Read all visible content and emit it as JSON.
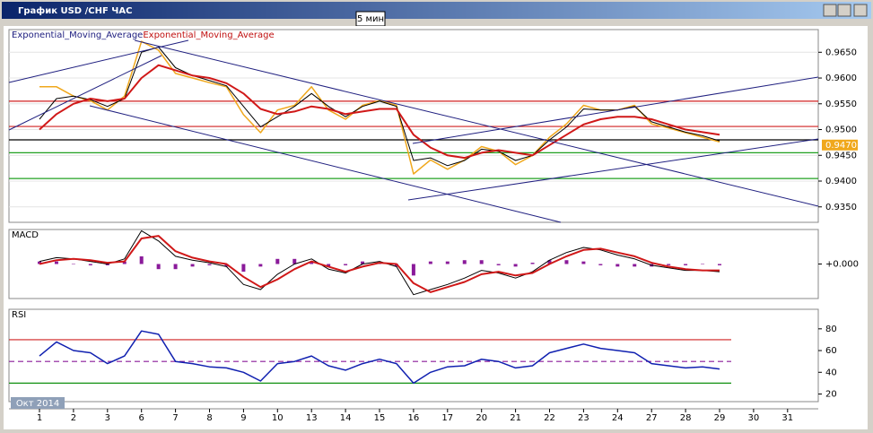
{
  "window": {
    "title": "График USD /CHF  ЧАС",
    "badge": "5 мин"
  },
  "x_axis": {
    "period_label": "Окт 2014"
  },
  "chart_data": [
    {
      "type": "line",
      "categories": [
        "1",
        null,
        "2",
        null,
        "3",
        null,
        "6",
        null,
        "7",
        null,
        "8",
        null,
        "9",
        null,
        "10",
        null,
        "13",
        null,
        "14",
        null,
        "15",
        null,
        "16",
        null,
        "17",
        null,
        "20",
        null,
        "21",
        null,
        "22",
        null,
        "23",
        null,
        "24",
        null,
        "27",
        null,
        "28",
        null,
        "29",
        null,
        "30",
        null,
        "31",
        null
      ],
      "ylim": [
        0.932,
        0.9694
      ],
      "yticks": [
        {
          "value": 0.935,
          "label": "0.9350"
        },
        {
          "value": 0.94,
          "label": "0.9400"
        },
        {
          "value": 0.945,
          "label": "0.9450"
        },
        {
          "value": 0.95,
          "label": "0.9500"
        },
        {
          "value": 0.955,
          "label": "0.9550"
        },
        {
          "value": 0.96,
          "label": "0.9600"
        },
        {
          "value": 0.965,
          "label": "0.9650"
        }
      ],
      "grid": true,
      "series": [
        {
          "color": "#f0a81c",
          "width": 1.5,
          "values": [
            0.9583,
            0.9583,
            0.9565,
            0.9556,
            0.9538,
            0.9565,
            0.9671,
            0.9654,
            0.9609,
            0.96,
            0.9591,
            0.9583,
            0.9529,
            0.9494,
            0.9538,
            0.9547,
            0.9583,
            0.9538,
            0.952,
            0.9547,
            0.9556,
            0.9547,
            0.9414,
            0.9441,
            0.9423,
            0.9441,
            0.9467,
            0.9458,
            0.9432,
            0.945,
            0.9485,
            0.9511,
            0.9547,
            0.9538,
            0.9538,
            0.9547,
            0.9511,
            0.9503,
            0.9494,
            0.9485,
            0.9476,
            null,
            null,
            null,
            null,
            null
          ]
        },
        {
          "name": "Exponential_Moving_Average",
          "color": "#000000",
          "label_color": "#202080",
          "width": 1,
          "values": [
            0.952,
            0.956,
            0.9565,
            0.9558,
            0.9545,
            0.956,
            0.965,
            0.966,
            0.962,
            0.9605,
            0.9595,
            0.9585,
            0.9545,
            0.9505,
            0.9525,
            0.9545,
            0.957,
            0.9545,
            0.9525,
            0.9545,
            0.9555,
            0.9545,
            0.944,
            0.9445,
            0.943,
            0.944,
            0.9462,
            0.9458,
            0.944,
            0.945,
            0.948,
            0.9505,
            0.954,
            0.9538,
            0.9538,
            0.9545,
            0.9515,
            0.9505,
            0.9495,
            0.9488,
            0.9478,
            null,
            null,
            null,
            null,
            null
          ]
        },
        {
          "name": "Exponential_Moving_Average",
          "color": "#d01818",
          "label_color": "#c01010",
          "width": 2,
          "values": [
            0.95,
            0.953,
            0.955,
            0.956,
            0.9555,
            0.956,
            0.96,
            0.9625,
            0.9615,
            0.9605,
            0.96,
            0.959,
            0.957,
            0.954,
            0.953,
            0.9535,
            0.9545,
            0.954,
            0.953,
            0.9535,
            0.954,
            0.954,
            0.949,
            0.9465,
            0.945,
            0.9445,
            0.9455,
            0.946,
            0.9455,
            0.945,
            0.947,
            0.949,
            0.951,
            0.952,
            0.9525,
            0.9525,
            0.952,
            0.951,
            0.95,
            0.9495,
            0.949,
            null,
            null,
            null,
            null,
            null
          ]
        }
      ],
      "levels": [
        {
          "value": 0.9555,
          "color": "#d02020"
        },
        {
          "value": 0.9506,
          "color": "#d02020"
        },
        {
          "value": 0.948,
          "color": "#000000"
        },
        {
          "value": 0.9455,
          "color": "#20a020"
        },
        {
          "value": 0.9405,
          "color": "#20a020"
        }
      ],
      "last_price": {
        "value": 0.947,
        "label": "0.9470"
      }
    },
    {
      "type": "line",
      "title": "MACD",
      "ylim": [
        -0.0027,
        0.0027
      ],
      "yticks": [
        {
          "value": 0,
          "label": "+0.000"
        }
      ],
      "histogram": {
        "color": "#8a1a9a",
        "values": [
          0.0002,
          0.0002,
          0,
          -0.0001,
          -0.0001,
          0.0002,
          0.0006,
          -0.0004,
          -0.0004,
          -0.0002,
          -0.0001,
          -0.0002,
          -0.0006,
          -0.0002,
          0.0004,
          0.0004,
          0.0002,
          -0.0002,
          -0.0001,
          0.0002,
          0.0001,
          -0.0002,
          -0.0009,
          0.0002,
          0.0002,
          0.0003,
          0.0003,
          -0.0001,
          -0.0002,
          0.0001,
          0.0003,
          0.0003,
          0.0002,
          -0.0001,
          -0.0002,
          -0.0002,
          -0.0002,
          -0.0001,
          -0.0001,
          0,
          -0.0001,
          null,
          null,
          null,
          null,
          null
        ]
      },
      "series": [
        {
          "color": "#000000",
          "width": 1,
          "values": [
            0.0002,
            0.0005,
            0.0004,
            0.0002,
            0.0,
            0.0004,
            0.0026,
            0.0018,
            0.0006,
            0.0003,
            0.0001,
            -0.0002,
            -0.0016,
            -0.002,
            -0.0008,
            0.0,
            0.0004,
            -0.0004,
            -0.0007,
            0.0,
            0.0002,
            -0.0002,
            -0.0024,
            -0.002,
            -0.0016,
            -0.0011,
            -0.0005,
            -0.0007,
            -0.0011,
            -0.0006,
            0.0003,
            0.0009,
            0.0013,
            0.0011,
            0.0007,
            0.0004,
            -0.0001,
            -0.0003,
            -0.0005,
            -0.0005,
            -0.0006,
            null,
            null,
            null,
            null,
            null
          ]
        },
        {
          "color": "#d01818",
          "width": 2,
          "values": [
            0.0,
            0.0003,
            0.0004,
            0.0003,
            0.0001,
            0.0002,
            0.002,
            0.0022,
            0.001,
            0.0005,
            0.0002,
            0.0,
            -0.001,
            -0.0018,
            -0.0012,
            -0.0004,
            0.0002,
            -0.0002,
            -0.0006,
            -0.0002,
            0.0001,
            0.0,
            -0.0015,
            -0.0022,
            -0.0018,
            -0.0014,
            -0.0008,
            -0.0006,
            -0.0009,
            -0.0007,
            0.0,
            0.0006,
            0.0011,
            0.0012,
            0.0009,
            0.0006,
            0.0001,
            -0.0002,
            -0.0004,
            -0.0005,
            -0.0005,
            null,
            null,
            null,
            null,
            null
          ]
        }
      ]
    },
    {
      "type": "line",
      "title": "RSI",
      "ylim": [
        13,
        98
      ],
      "yticks": [
        20,
        40,
        60,
        80
      ],
      "series": [
        {
          "color": "#1020b0",
          "width": 1.5,
          "values": [
            55,
            68,
            60,
            58,
            48,
            55,
            78,
            75,
            50,
            48,
            45,
            44,
            40,
            32,
            48,
            50,
            55,
            46,
            42,
            48,
            52,
            48,
            30,
            40,
            45,
            46,
            52,
            50,
            44,
            46,
            58,
            62,
            66,
            62,
            60,
            58,
            48,
            46,
            44,
            45,
            43,
            null,
            null,
            null,
            null,
            null
          ]
        }
      ],
      "levels": [
        {
          "value": 70,
          "color": "#d02020"
        },
        {
          "value": 50,
          "color": "#8a1a9a",
          "dash": true
        },
        {
          "value": 30,
          "color": "#109010"
        }
      ]
    }
  ]
}
